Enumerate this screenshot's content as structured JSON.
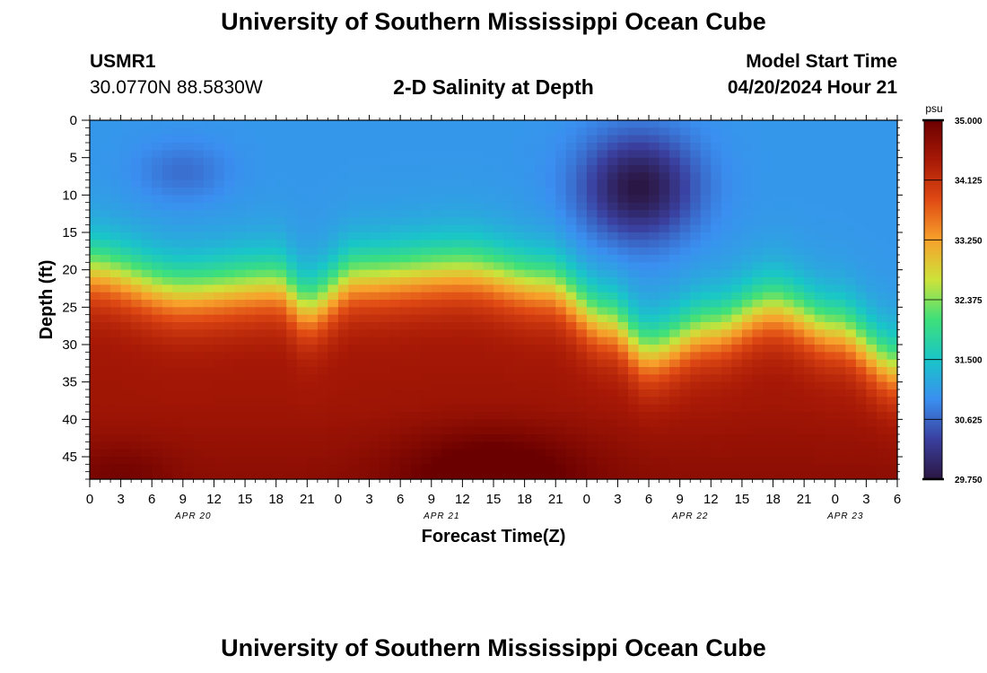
{
  "header": {
    "title": "University of Southern Mississippi Ocean Cube",
    "station_id": "USMR1",
    "station_coords": "30.0770N  88.5830W",
    "subtitle": "2-D Salinity at Depth",
    "model_start_label": "Model Start Time",
    "model_start_value": "04/20/2024 Hour 21"
  },
  "footer": {
    "title": "University of Southern Mississippi Ocean Cube"
  },
  "chart_data": {
    "type": "heatmap",
    "title": "2-D Salinity at Depth",
    "xlabel": "Forecast Time(Z)",
    "ylabel": "Depth (ft)",
    "x_ticks": [
      "0",
      "3",
      "6",
      "9",
      "12",
      "15",
      "18",
      "21",
      "0",
      "3",
      "6",
      "9",
      "12",
      "15",
      "18",
      "21",
      "0",
      "3",
      "6",
      "9",
      "12",
      "15",
      "18",
      "21",
      "0",
      "3",
      "6"
    ],
    "date_labels": [
      {
        "label": "APR 20",
        "at_hour": 10
      },
      {
        "label": "APR 21",
        "at_hour": 34
      },
      {
        "label": "APR 22",
        "at_hour": 58
      },
      {
        "label": "APR 23",
        "at_hour": 73
      }
    ],
    "xlim": [
      0,
      78
    ],
    "y_ticks": [
      0,
      5,
      10,
      15,
      20,
      25,
      30,
      35,
      40,
      45
    ],
    "ylim": [
      0,
      48
    ],
    "colorbar": {
      "unit": "psu",
      "min": 29.75,
      "max": 35.0,
      "ticks": [
        "35.000",
        "34.125",
        "33.250",
        "32.375",
        "31.500",
        "30.625",
        "29.750"
      ],
      "colors": [
        "#2b1642",
        "#3a3f9e",
        "#3a8ff0",
        "#19c6c8",
        "#3ee07a",
        "#cde33a",
        "#f7a12b",
        "#e04a14",
        "#a81906",
        "#6b0000"
      ]
    },
    "grid": {
      "cols": 78,
      "rows": 48
    },
    "halocline_depth_ft": [
      {
        "hour": 0,
        "depth": 20
      },
      {
        "hour": 9,
        "depth": 23
      },
      {
        "hour": 18,
        "depth": 22
      },
      {
        "hour": 21,
        "depth": 25
      },
      {
        "hour": 26,
        "depth": 21
      },
      {
        "hour": 36,
        "depth": 20
      },
      {
        "hour": 44,
        "depth": 22
      },
      {
        "hour": 50,
        "depth": 27
      },
      {
        "hour": 54,
        "depth": 31
      },
      {
        "hour": 60,
        "depth": 28
      },
      {
        "hour": 66,
        "depth": 25
      },
      {
        "hour": 72,
        "depth": 28
      },
      {
        "hour": 78,
        "depth": 33
      }
    ],
    "features": {
      "fresh_surface_core": {
        "center_hour": 53,
        "center_depth_ft": 9,
        "value_psu": 29.8
      },
      "fresh_surface_patch": {
        "center_hour": 9,
        "center_depth_ft": 7,
        "value_psu": 30.7
      },
      "surface_layer_psu": 31.0,
      "bottom_layer_psu": 34.5,
      "bottom_max": {
        "center_hour": 39,
        "center_depth_ft": 47,
        "value_psu": 35.0
      }
    }
  }
}
